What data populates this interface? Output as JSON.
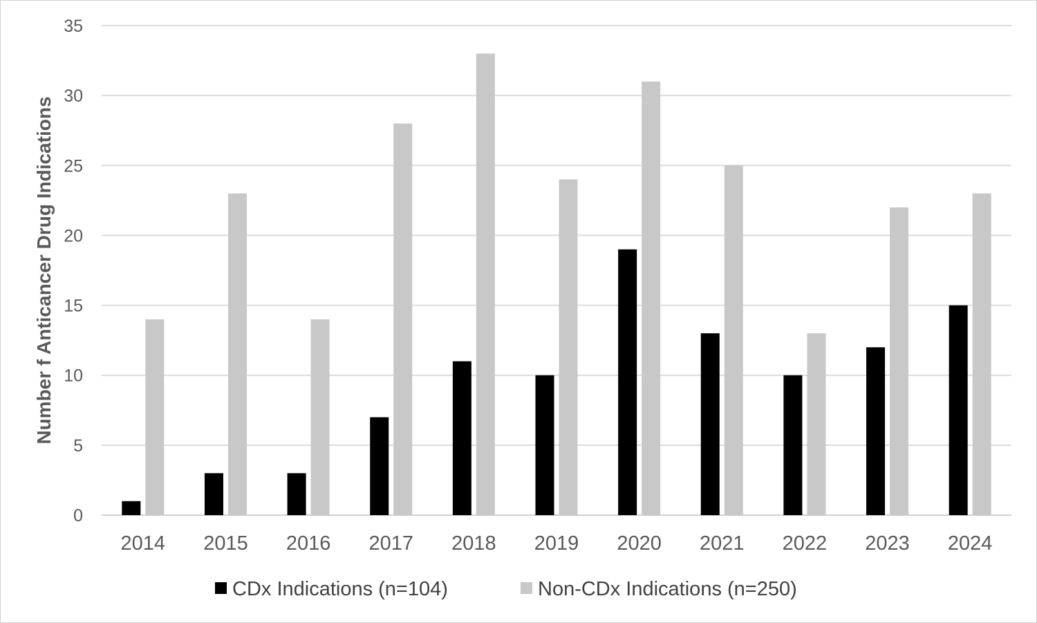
{
  "chart_data": {
    "type": "bar",
    "title": "",
    "xlabel": "",
    "ylabel": "Number f Anticancer Drug Indications",
    "ylim": [
      0,
      35
    ],
    "yticks": [
      "0",
      "5",
      "10",
      "15",
      "20",
      "25",
      "30",
      "35"
    ],
    "categories": [
      "2014",
      "2015",
      "2016",
      "2017",
      "2018",
      "2019",
      "2020",
      "2021",
      "2022",
      "2023",
      "2024"
    ],
    "series": [
      {
        "name": "CDx Indications (n=104)",
        "color": "#000000",
        "values": [
          1,
          3,
          3,
          7,
          11,
          10,
          19,
          13,
          10,
          12,
          15
        ]
      },
      {
        "name": "Non-CDx Indications (n=250)",
        "color": "#c8c8c8",
        "values": [
          14,
          23,
          14,
          28,
          33,
          24,
          31,
          25,
          13,
          22,
          23
        ]
      }
    ],
    "grid": true,
    "legend": "bottom"
  }
}
